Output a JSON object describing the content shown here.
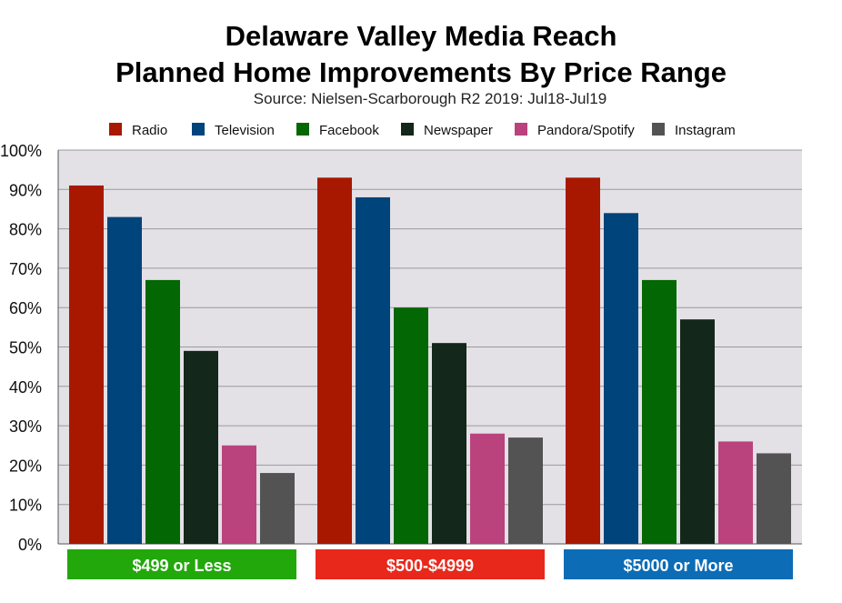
{
  "chart_data": {
    "type": "bar",
    "title": "Delaware Valley Media Reach",
    "subtitle": "Planned Home Improvements By Price Range",
    "source": "Source: Nielsen-Scarborough R2 2019: Jul18-Jul19",
    "categories": [
      "$499 or Less",
      "$500-$4999",
      "$5000 or More"
    ],
    "category_colors": [
      "#22a80a",
      "#e8281b",
      "#0c6cb6"
    ],
    "series": [
      {
        "name": "Radio",
        "color": "#a81800",
        "values": [
          91,
          93,
          93
        ]
      },
      {
        "name": "Television",
        "color": "#00447c",
        "values": [
          83,
          88,
          84
        ]
      },
      {
        "name": "Facebook",
        "color": "#036703",
        "values": [
          67,
          60,
          67
        ]
      },
      {
        "name": "Newspaper",
        "color": "#13271a",
        "values": [
          49,
          51,
          57
        ]
      },
      {
        "name": "Pandora/Spotify",
        "color": "#ba427d",
        "values": [
          25,
          28,
          26
        ]
      },
      {
        "name": "Instagram",
        "color": "#535353",
        "values": [
          18,
          27,
          23
        ]
      }
    ],
    "ylim": [
      0,
      100
    ],
    "yticks": [
      "0%",
      "10%",
      "20%",
      "30%",
      "40%",
      "50%",
      "60%",
      "70%",
      "80%",
      "90%",
      "100%"
    ],
    "grid": true,
    "legend": "top",
    "plot_background": "#e3e1e6"
  }
}
